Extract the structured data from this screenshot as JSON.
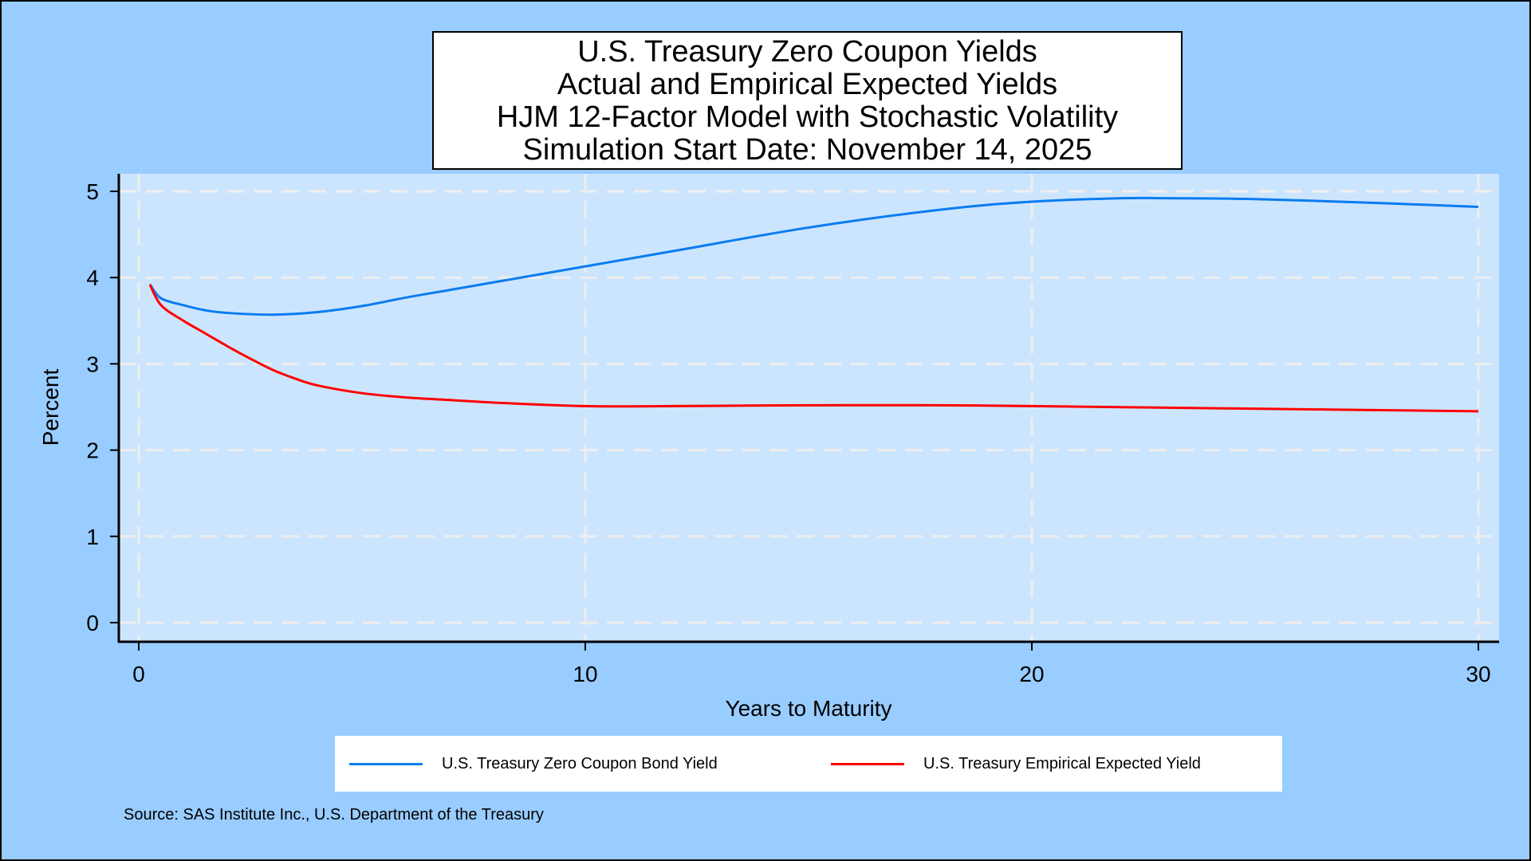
{
  "chart_data": {
    "type": "line",
    "title": [
      "U.S. Treasury Zero Coupon Yields",
      "Actual and Empirical Expected Yields",
      "HJM 12-Factor Model with Stochastic Volatility",
      "Simulation Start Date: November 14, 2025"
    ],
    "xlabel": "Years to Maturity",
    "ylabel": "Percent",
    "xlim": [
      0,
      30
    ],
    "ylim": [
      0,
      5
    ],
    "xticks": [
      "0",
      "10",
      "20",
      "30"
    ],
    "yticks": [
      "0",
      "1",
      "2",
      "3",
      "4",
      "5"
    ],
    "grid": true,
    "legend_position": "bottom",
    "series": [
      {
        "name": "U.S. Treasury Zero Coupon Bond Yield",
        "color": "#0a7cf0",
        "x": [
          0.25,
          0.5,
          1,
          1.5,
          2,
          3,
          4,
          5,
          6,
          7,
          8,
          10,
          12,
          15,
          18,
          20,
          22,
          23,
          25,
          28,
          30
        ],
        "y": [
          3.92,
          3.76,
          3.68,
          3.62,
          3.59,
          3.57,
          3.6,
          3.67,
          3.77,
          3.86,
          3.95,
          4.13,
          4.31,
          4.58,
          4.79,
          4.88,
          4.92,
          4.92,
          4.91,
          4.86,
          4.82
        ]
      },
      {
        "name": "U.S. Treasury Empirical Expected Yield",
        "color": "#ff0000",
        "x": [
          0.25,
          0.5,
          1,
          1.5,
          2,
          2.5,
          3,
          3.5,
          4,
          5,
          6,
          7,
          8,
          10,
          12,
          15,
          18,
          20,
          25,
          30
        ],
        "y": [
          3.92,
          3.68,
          3.5,
          3.35,
          3.2,
          3.06,
          2.93,
          2.83,
          2.75,
          2.66,
          2.61,
          2.58,
          2.55,
          2.51,
          2.51,
          2.52,
          2.52,
          2.51,
          2.48,
          2.45
        ]
      }
    ]
  },
  "source": "Source: SAS Institute Inc., U.S. Department of the Treasury"
}
